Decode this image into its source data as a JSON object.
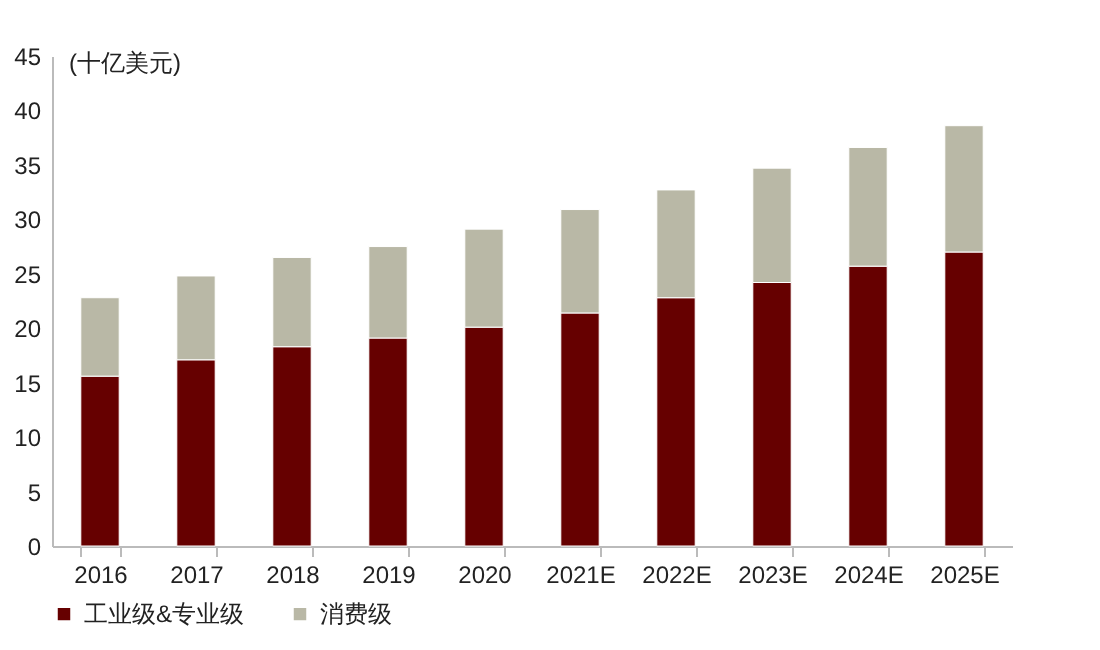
{
  "chart_data": {
    "type": "bar",
    "stacked": true,
    "ylabel": "(十亿美元)",
    "categories": [
      "2016",
      "2017",
      "2018",
      "2019",
      "2020",
      "2021E",
      "2022E",
      "2023E",
      "2024E",
      "2025E"
    ],
    "series": [
      {
        "name": "工业级&专业级",
        "color": "#660000",
        "values": [
          15.6,
          17.1,
          18.3,
          19.1,
          20.1,
          21.4,
          22.8,
          24.2,
          25.7,
          27.0
        ]
      },
      {
        "name": "消费级",
        "color": "#b9b8a6",
        "values": [
          7.2,
          7.7,
          8.2,
          8.4,
          9.0,
          9.5,
          9.9,
          10.5,
          10.9,
          11.6
        ]
      }
    ],
    "ylim": [
      0,
      45
    ],
    "yticks": [
      0,
      5,
      10,
      15,
      20,
      25,
      30,
      35,
      40,
      45
    ],
    "grid": false,
    "legend": "bottom"
  }
}
